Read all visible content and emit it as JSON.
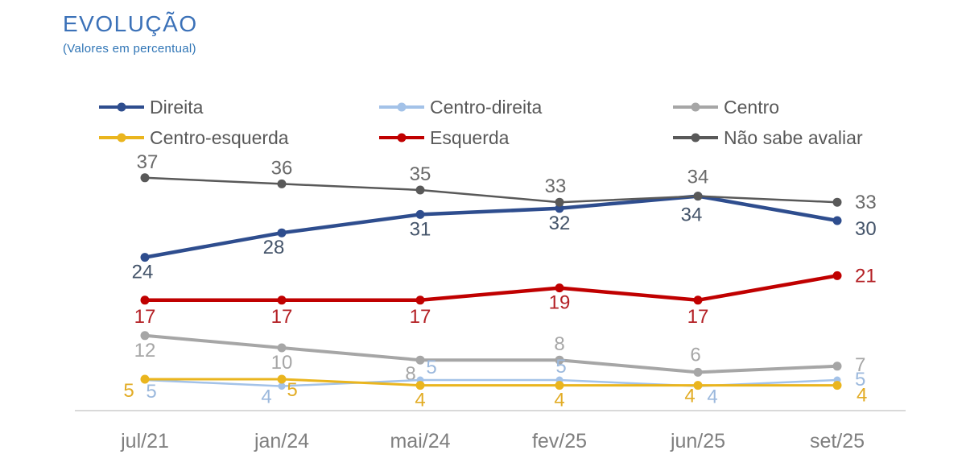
{
  "header": {
    "title": "EVOLUÇÃO",
    "subtitle": "(Valores em percentual)"
  },
  "chart_data": {
    "type": "line",
    "title": "EVOLUÇÃO",
    "subtitle": "(Valores em percentual)",
    "categories": [
      "jul/21",
      "jan/24",
      "mai/24",
      "fev/25",
      "jun/25",
      "set/25"
    ],
    "series": [
      {
        "id": "direita",
        "name": "Direita",
        "color": "#2e4d8e",
        "label_color": "#44546a",
        "values": [
          24,
          28,
          31,
          32,
          34,
          30
        ]
      },
      {
        "id": "centro_direita",
        "name": "Centro-direita",
        "color": "#a3c2e8",
        "label_color": "#9cb9dd",
        "values": [
          5,
          4,
          5,
          5,
          4,
          5
        ]
      },
      {
        "id": "centro",
        "name": "Centro",
        "color": "#a6a6a6",
        "label_color": "#a6a6a6",
        "values": [
          12,
          10,
          8,
          8,
          6,
          7
        ]
      },
      {
        "id": "centro_esquerda",
        "name": "Centro-esquerda",
        "color": "#eab51e",
        "label_color": "#e2ac25",
        "values": [
          5,
          5,
          4,
          4,
          4,
          4
        ]
      },
      {
        "id": "esquerda",
        "name": "Esquerda",
        "color": "#c00000",
        "label_color": "#b42025",
        "values": [
          17,
          17,
          17,
          19,
          17,
          21
        ]
      },
      {
        "id": "nao_sabe",
        "name": "Não sabe avaliar",
        "color": "#595959",
        "label_color": "#6a6a6a",
        "values": [
          37,
          36,
          35,
          33,
          34,
          33
        ]
      }
    ],
    "legend_position": "top",
    "grid": false,
    "data_labels": true,
    "ylim": [
      0,
      40
    ],
    "axis_line_color": "#d9d9d9",
    "axis_label_color": "#7f7f7f"
  }
}
